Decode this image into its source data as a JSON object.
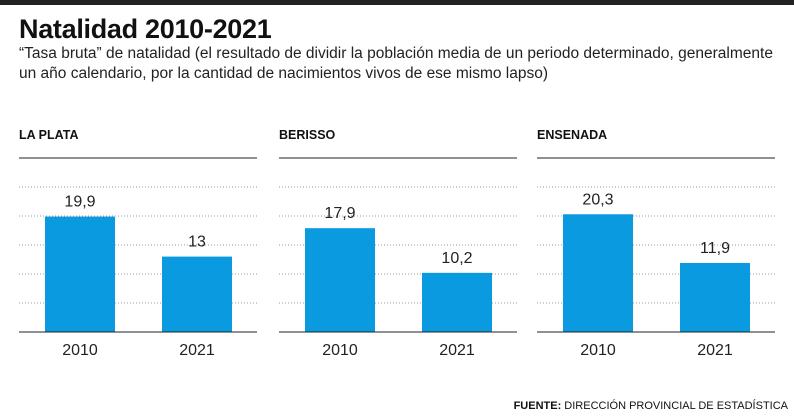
{
  "title": "Natalidad 2010-2021",
  "subtitle": "“Tasa bruta” de natalidad (el resultado de dividir la población media de un periodo determinado, generalmente un año calendario, por la cantidad de nacimientos vivos de ese mismo lapso)",
  "source": {
    "label": "FUENTE:",
    "text": "DIRECCIÓN PROVINCIAL DE ESTADÍSTICA"
  },
  "colors": {
    "bar": "#0a9ae0",
    "axis": "#222222",
    "grid": "#999999"
  },
  "chart_data": [
    {
      "type": "bar",
      "title": "LA PLATA",
      "categories": [
        "2010",
        "2021"
      ],
      "values": [
        19.9,
        13
      ],
      "value_labels": [
        "19,9",
        "13"
      ],
      "ylim": [
        0,
        30
      ],
      "grid": true
    },
    {
      "type": "bar",
      "title": "BERISSO",
      "categories": [
        "2010",
        "2021"
      ],
      "values": [
        17.9,
        10.2
      ],
      "value_labels": [
        "17,9",
        "10,2"
      ],
      "ylim": [
        0,
        30
      ],
      "grid": true
    },
    {
      "type": "bar",
      "title": "ENSENADA",
      "categories": [
        "2010",
        "2021"
      ],
      "values": [
        20.3,
        11.9
      ],
      "value_labels": [
        "20,3",
        "11,9"
      ],
      "ylim": [
        0,
        30
      ],
      "grid": true
    }
  ]
}
